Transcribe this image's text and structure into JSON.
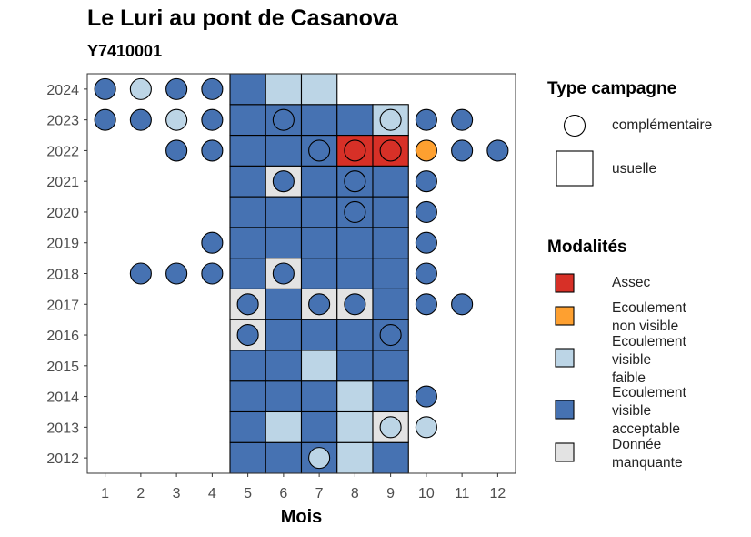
{
  "title": "Le Luri au pont de Casanova",
  "subtitle": "Y7410001",
  "chart_data": {
    "type": "heatmap",
    "xlabel": "Mois",
    "ylabel": "",
    "x_ticks": [
      "1",
      "2",
      "3",
      "4",
      "5",
      "6",
      "7",
      "8",
      "9",
      "10",
      "11",
      "12"
    ],
    "y_ticks": [
      "2012",
      "2013",
      "2014",
      "2015",
      "2016",
      "2017",
      "2018",
      "2019",
      "2020",
      "2021",
      "2022",
      "2023",
      "2024"
    ],
    "xlim": [
      0.5,
      12.5
    ],
    "ylim": [
      2011.5,
      2024.5
    ],
    "grid": false,
    "colors": {
      "Assec": "#d73027",
      "Ecoulement non visible": "#fea030",
      "Ecoulement visible faible": "#bcd5e6",
      "Ecoulement visible acceptable": "#4672b2",
      "Donnée manquante": "#e3e3e3"
    },
    "usuelle": [
      {
        "year": 2012,
        "month": 5,
        "mod": "Ecoulement visible acceptable"
      },
      {
        "year": 2012,
        "month": 6,
        "mod": "Ecoulement visible acceptable"
      },
      {
        "year": 2012,
        "month": 7,
        "mod": "Ecoulement visible acceptable"
      },
      {
        "year": 2012,
        "month": 8,
        "mod": "Ecoulement visible faible"
      },
      {
        "year": 2012,
        "month": 9,
        "mod": "Ecoulement visible acceptable"
      },
      {
        "year": 2013,
        "month": 5,
        "mod": "Ecoulement visible acceptable"
      },
      {
        "year": 2013,
        "month": 6,
        "mod": "Ecoulement visible faible"
      },
      {
        "year": 2013,
        "month": 7,
        "mod": "Ecoulement visible acceptable"
      },
      {
        "year": 2013,
        "month": 8,
        "mod": "Ecoulement visible faible"
      },
      {
        "year": 2013,
        "month": 9,
        "mod": "Donnée manquante"
      },
      {
        "year": 2014,
        "month": 5,
        "mod": "Ecoulement visible acceptable"
      },
      {
        "year": 2014,
        "month": 6,
        "mod": "Ecoulement visible acceptable"
      },
      {
        "year": 2014,
        "month": 7,
        "mod": "Ecoulement visible acceptable"
      },
      {
        "year": 2014,
        "month": 8,
        "mod": "Ecoulement visible faible"
      },
      {
        "year": 2014,
        "month": 9,
        "mod": "Ecoulement visible acceptable"
      },
      {
        "year": 2015,
        "month": 5,
        "mod": "Ecoulement visible acceptable"
      },
      {
        "year": 2015,
        "month": 6,
        "mod": "Ecoulement visible acceptable"
      },
      {
        "year": 2015,
        "month": 7,
        "mod": "Ecoulement visible faible"
      },
      {
        "year": 2015,
        "month": 8,
        "mod": "Ecoulement visible acceptable"
      },
      {
        "year": 2015,
        "month": 9,
        "mod": "Ecoulement visible acceptable"
      },
      {
        "year": 2016,
        "month": 5,
        "mod": "Donnée manquante"
      },
      {
        "year": 2016,
        "month": 6,
        "mod": "Ecoulement visible acceptable"
      },
      {
        "year": 2016,
        "month": 7,
        "mod": "Ecoulement visible acceptable"
      },
      {
        "year": 2016,
        "month": 8,
        "mod": "Ecoulement visible acceptable"
      },
      {
        "year": 2016,
        "month": 9,
        "mod": "Ecoulement visible acceptable"
      },
      {
        "year": 2017,
        "month": 5,
        "mod": "Donnée manquante"
      },
      {
        "year": 2017,
        "month": 6,
        "mod": "Ecoulement visible acceptable"
      },
      {
        "year": 2017,
        "month": 7,
        "mod": "Donnée manquante"
      },
      {
        "year": 2017,
        "month": 8,
        "mod": "Donnée manquante"
      },
      {
        "year": 2017,
        "month": 9,
        "mod": "Ecoulement visible acceptable"
      },
      {
        "year": 2018,
        "month": 5,
        "mod": "Ecoulement visible acceptable"
      },
      {
        "year": 2018,
        "month": 6,
        "mod": "Donnée manquante"
      },
      {
        "year": 2018,
        "month": 7,
        "mod": "Ecoulement visible acceptable"
      },
      {
        "year": 2018,
        "month": 8,
        "mod": "Ecoulement visible acceptable"
      },
      {
        "year": 2018,
        "month": 9,
        "mod": "Ecoulement visible acceptable"
      },
      {
        "year": 2019,
        "month": 5,
        "mod": "Ecoulement visible acceptable"
      },
      {
        "year": 2019,
        "month": 6,
        "mod": "Ecoulement visible acceptable"
      },
      {
        "year": 2019,
        "month": 7,
        "mod": "Ecoulement visible acceptable"
      },
      {
        "year": 2019,
        "month": 8,
        "mod": "Ecoulement visible acceptable"
      },
      {
        "year": 2019,
        "month": 9,
        "mod": "Ecoulement visible acceptable"
      },
      {
        "year": 2020,
        "month": 5,
        "mod": "Ecoulement visible acceptable"
      },
      {
        "year": 2020,
        "month": 6,
        "mod": "Ecoulement visible acceptable"
      },
      {
        "year": 2020,
        "month": 7,
        "mod": "Ecoulement visible acceptable"
      },
      {
        "year": 2020,
        "month": 8,
        "mod": "Ecoulement visible acceptable"
      },
      {
        "year": 2020,
        "month": 9,
        "mod": "Ecoulement visible acceptable"
      },
      {
        "year": 2021,
        "month": 5,
        "mod": "Ecoulement visible acceptable"
      },
      {
        "year": 2021,
        "month": 6,
        "mod": "Donnée manquante"
      },
      {
        "year": 2021,
        "month": 7,
        "mod": "Ecoulement visible acceptable"
      },
      {
        "year": 2021,
        "month": 8,
        "mod": "Ecoulement visible acceptable"
      },
      {
        "year": 2021,
        "month": 9,
        "mod": "Ecoulement visible acceptable"
      },
      {
        "year": 2022,
        "month": 5,
        "mod": "Ecoulement visible acceptable"
      },
      {
        "year": 2022,
        "month": 6,
        "mod": "Ecoulement visible acceptable"
      },
      {
        "year": 2022,
        "month": 7,
        "mod": "Ecoulement visible acceptable"
      },
      {
        "year": 2022,
        "month": 8,
        "mod": "Assec"
      },
      {
        "year": 2022,
        "month": 9,
        "mod": "Assec"
      },
      {
        "year": 2023,
        "month": 5,
        "mod": "Ecoulement visible acceptable"
      },
      {
        "year": 2023,
        "month": 6,
        "mod": "Ecoulement visible acceptable"
      },
      {
        "year": 2023,
        "month": 7,
        "mod": "Ecoulement visible acceptable"
      },
      {
        "year": 2023,
        "month": 8,
        "mod": "Ecoulement visible acceptable"
      },
      {
        "year": 2023,
        "month": 9,
        "mod": "Ecoulement visible faible"
      },
      {
        "year": 2024,
        "month": 5,
        "mod": "Ecoulement visible acceptable"
      },
      {
        "year": 2024,
        "month": 6,
        "mod": "Ecoulement visible faible"
      },
      {
        "year": 2024,
        "month": 7,
        "mod": "Ecoulement visible faible"
      }
    ],
    "complementaire": [
      {
        "year": 2012,
        "month": 7,
        "mod": "Ecoulement visible faible"
      },
      {
        "year": 2013,
        "month": 9,
        "mod": "Ecoulement visible faible"
      },
      {
        "year": 2013,
        "month": 10,
        "mod": "Ecoulement visible faible"
      },
      {
        "year": 2014,
        "month": 10,
        "mod": "Ecoulement visible acceptable"
      },
      {
        "year": 2016,
        "month": 5,
        "mod": "Ecoulement visible acceptable"
      },
      {
        "year": 2016,
        "month": 9,
        "mod": "Ecoulement visible acceptable"
      },
      {
        "year": 2017,
        "month": 5,
        "mod": "Ecoulement visible acceptable"
      },
      {
        "year": 2017,
        "month": 7,
        "mod": "Ecoulement visible acceptable"
      },
      {
        "year": 2017,
        "month": 8,
        "mod": "Ecoulement visible acceptable"
      },
      {
        "year": 2017,
        "month": 10,
        "mod": "Ecoulement visible acceptable"
      },
      {
        "year": 2017,
        "month": 11,
        "mod": "Ecoulement visible acceptable"
      },
      {
        "year": 2018,
        "month": 2,
        "mod": "Ecoulement visible acceptable"
      },
      {
        "year": 2018,
        "month": 3,
        "mod": "Ecoulement visible acceptable"
      },
      {
        "year": 2018,
        "month": 4,
        "mod": "Ecoulement visible acceptable"
      },
      {
        "year": 2018,
        "month": 6,
        "mod": "Ecoulement visible acceptable"
      },
      {
        "year": 2018,
        "month": 10,
        "mod": "Ecoulement visible acceptable"
      },
      {
        "year": 2019,
        "month": 4,
        "mod": "Ecoulement visible acceptable"
      },
      {
        "year": 2019,
        "month": 10,
        "mod": "Ecoulement visible acceptable"
      },
      {
        "year": 2020,
        "month": 8,
        "mod": "Ecoulement visible acceptable"
      },
      {
        "year": 2020,
        "month": 10,
        "mod": "Ecoulement visible acceptable"
      },
      {
        "year": 2021,
        "month": 6,
        "mod": "Ecoulement visible acceptable"
      },
      {
        "year": 2021,
        "month": 8,
        "mod": "Ecoulement visible acceptable"
      },
      {
        "year": 2021,
        "month": 10,
        "mod": "Ecoulement visible acceptable"
      },
      {
        "year": 2022,
        "month": 3,
        "mod": "Ecoulement visible acceptable"
      },
      {
        "year": 2022,
        "month": 4,
        "mod": "Ecoulement visible acceptable"
      },
      {
        "year": 2022,
        "month": 7,
        "mod": "Ecoulement visible acceptable"
      },
      {
        "year": 2022,
        "month": 8,
        "mod": "Assec"
      },
      {
        "year": 2022,
        "month": 9,
        "mod": "Assec"
      },
      {
        "year": 2022,
        "month": 10,
        "mod": "Ecoulement non visible"
      },
      {
        "year": 2022,
        "month": 11,
        "mod": "Ecoulement visible acceptable"
      },
      {
        "year": 2022,
        "month": 12,
        "mod": "Ecoulement visible acceptable"
      },
      {
        "year": 2023,
        "month": 1,
        "mod": "Ecoulement visible acceptable"
      },
      {
        "year": 2023,
        "month": 2,
        "mod": "Ecoulement visible acceptable"
      },
      {
        "year": 2023,
        "month": 3,
        "mod": "Ecoulement visible faible"
      },
      {
        "year": 2023,
        "month": 4,
        "mod": "Ecoulement visible acceptable"
      },
      {
        "year": 2023,
        "month": 6,
        "mod": "Ecoulement visible acceptable"
      },
      {
        "year": 2023,
        "month": 9,
        "mod": "Ecoulement visible faible"
      },
      {
        "year": 2023,
        "month": 10,
        "mod": "Ecoulement visible acceptable"
      },
      {
        "year": 2023,
        "month": 11,
        "mod": "Ecoulement visible acceptable"
      },
      {
        "year": 2024,
        "month": 1,
        "mod": "Ecoulement visible acceptable"
      },
      {
        "year": 2024,
        "month": 2,
        "mod": "Ecoulement visible faible"
      },
      {
        "year": 2024,
        "month": 3,
        "mod": "Ecoulement visible acceptable"
      },
      {
        "year": 2024,
        "month": 4,
        "mod": "Ecoulement visible acceptable"
      }
    ]
  },
  "legend_type": {
    "title": "Type campagne",
    "items": [
      {
        "label": "complémentaire",
        "shape": "circle"
      },
      {
        "label": "usuelle",
        "shape": "square"
      }
    ]
  },
  "legend_mod": {
    "title": "Modalités",
    "items": [
      {
        "label": "Assec",
        "color": "#d73027"
      },
      {
        "label": "Ecoulement\nnon visible",
        "color": "#fea030"
      },
      {
        "label": "Ecoulement\nvisible\nfaible",
        "color": "#bcd5e6"
      },
      {
        "label": "Ecoulement\nvisible\nacceptable",
        "color": "#4672b2"
      },
      {
        "label": "Donnée\nmanquante",
        "color": "#e3e3e3"
      }
    ]
  }
}
